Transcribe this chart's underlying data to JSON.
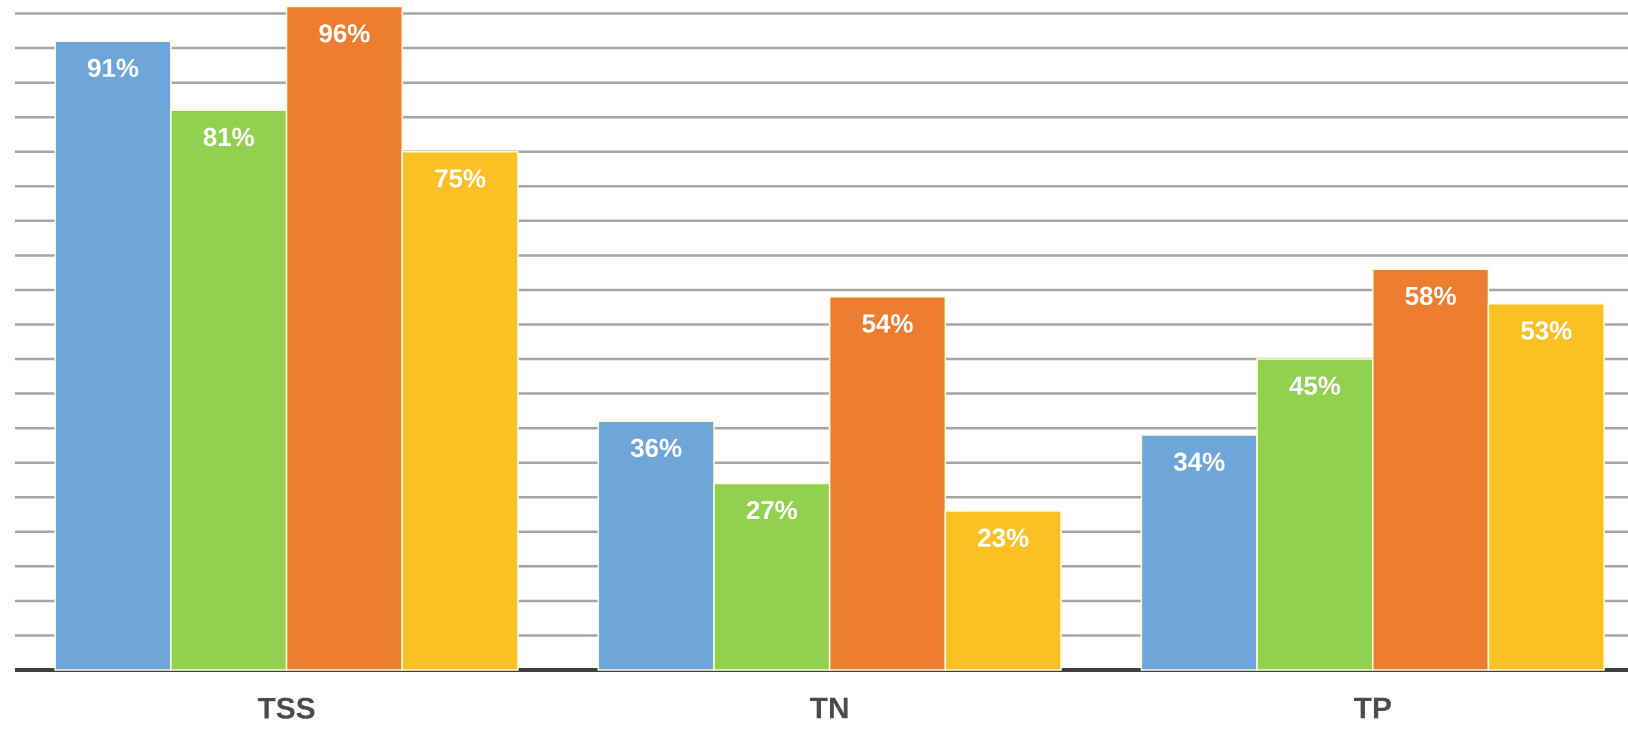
{
  "chart_data": {
    "type": "bar",
    "categories": [
      "TSS",
      "TN",
      "TP"
    ],
    "series": [
      {
        "color": "#6fa6da",
        "values": [
          91,
          36,
          34
        ],
        "value_labels": [
          "91%",
          "36%",
          "34%"
        ]
      },
      {
        "color": "#92d050",
        "values": [
          81,
          27,
          45
        ],
        "value_labels": [
          "81%",
          "27%",
          "45%"
        ]
      },
      {
        "color": "#ed7d31",
        "values": [
          96,
          54,
          58
        ],
        "value_labels": [
          "96%",
          "54%",
          "58%"
        ]
      },
      {
        "color": "#fbc124",
        "values": [
          75,
          23,
          53
        ],
        "value_labels": [
          "75%",
          "23%",
          "53%"
        ]
      }
    ],
    "grid": "y",
    "tick_labels": "x",
    "legend": false
  }
}
